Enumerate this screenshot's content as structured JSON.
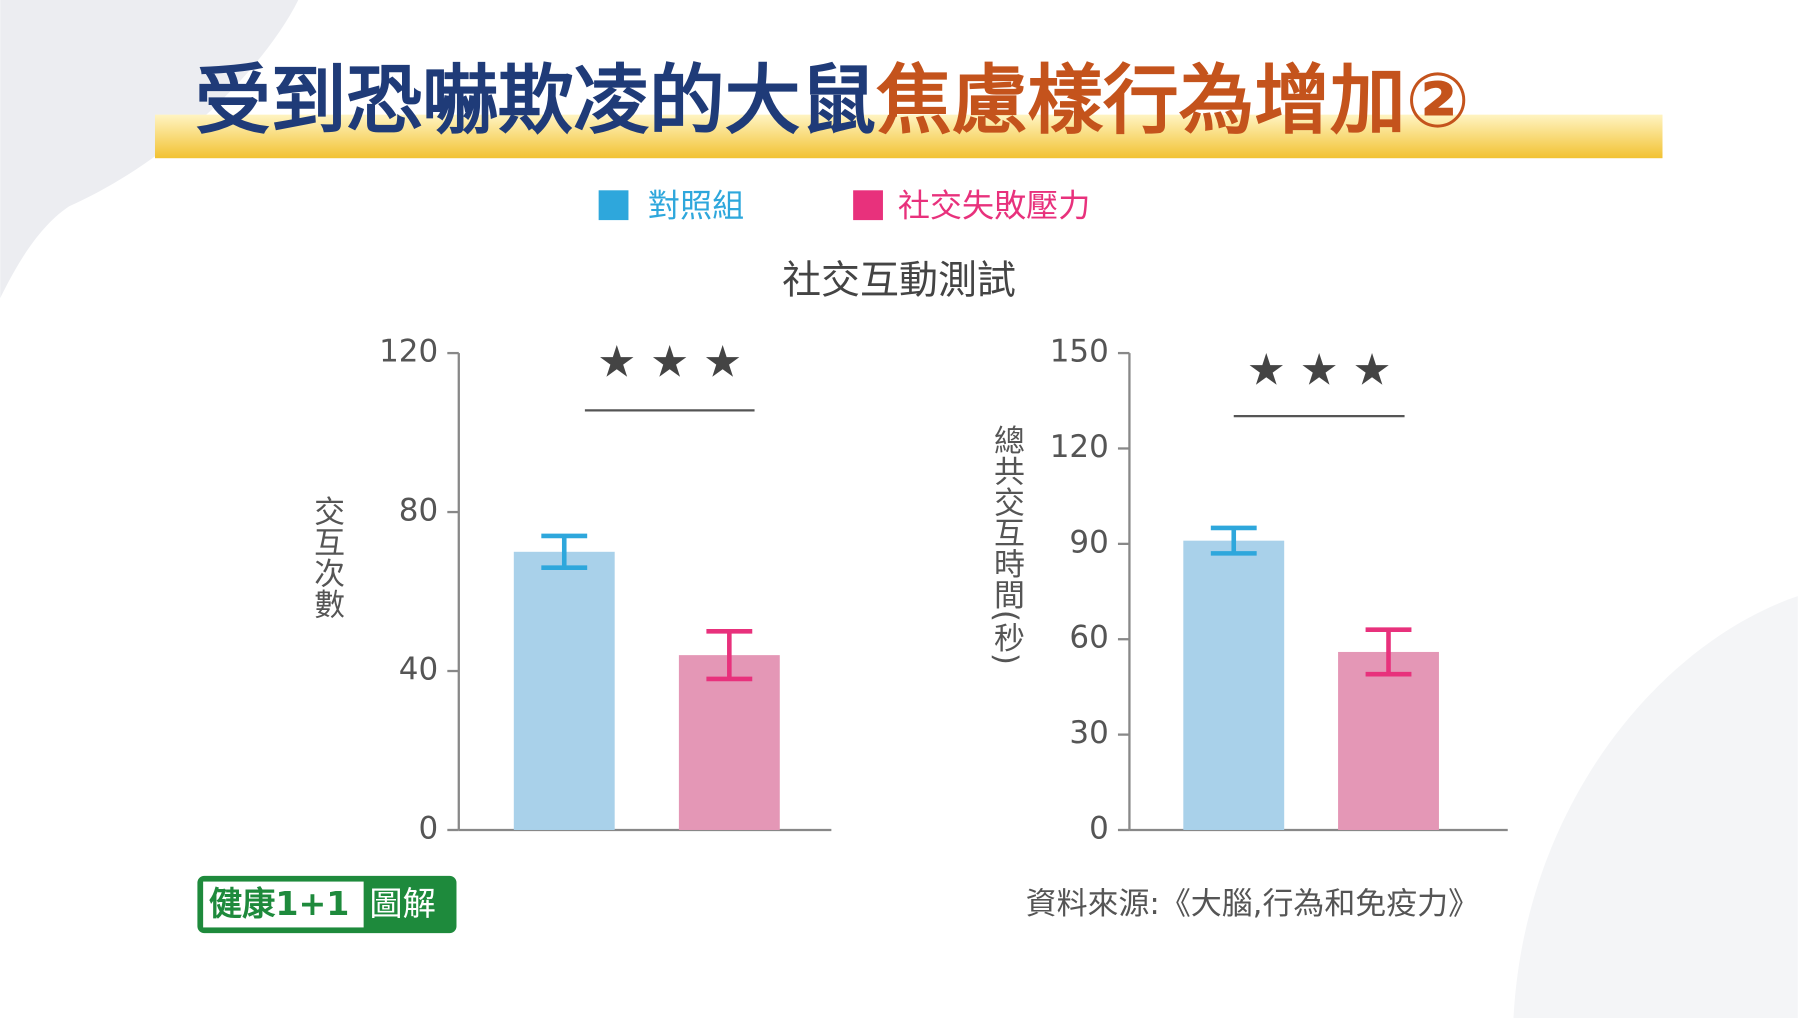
{
  "title": {
    "part1": "受到恐嚇欺凌的大鼠",
    "part2": "焦慮樣行為增加②"
  },
  "subtitle": "社交互動測試",
  "chart_data": [
    {
      "type": "bar",
      "ylabel": "交互次數",
      "ylim": [
        0,
        120
      ],
      "yticks": [
        0,
        40,
        80,
        120
      ],
      "significance": "★ ★ ★",
      "series": [
        {
          "name": "對照組",
          "color": "#a9d1ea",
          "error_color": "#2ea7dc",
          "values": [
            70
          ],
          "errors": [
            4
          ]
        },
        {
          "name": "社交失敗壓力",
          "color": "#e497b6",
          "error_color": "#e8317c",
          "values": [
            44
          ],
          "errors": [
            6
          ]
        }
      ]
    },
    {
      "type": "bar",
      "ylabel": "總共交互時間(秒)",
      "ylim": [
        0,
        150
      ],
      "yticks": [
        0,
        30,
        60,
        90,
        120,
        150
      ],
      "significance": "★ ★ ★",
      "series": [
        {
          "color": "#a9d1ea",
          "error_color": "#2ea7dc",
          "values": [
            91
          ],
          "errors": [
            4
          ]
        },
        {
          "color": "#e497b6",
          "error_color": "#e8317c",
          "values": [
            56
          ],
          "errors": [
            7
          ]
        }
      ]
    }
  ],
  "source": "資料來源:《大腦,行為和免疫力》",
  "logo": {
    "part1": "健康1+1",
    "part2": "圖解"
  }
}
